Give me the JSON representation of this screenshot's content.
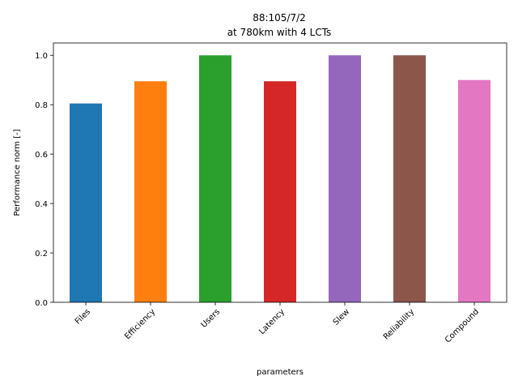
{
  "chart_data": {
    "type": "bar",
    "title": "88:105/7/2",
    "subtitle": "at 780km with 4 LCTs",
    "xlabel": "parameters",
    "ylabel": "Performance norm [-]",
    "categories": [
      "Files",
      "Efficiency",
      "Users",
      "Latency",
      "Slew",
      "Reliability",
      "Compound"
    ],
    "values": [
      0.805,
      0.895,
      1.0,
      0.895,
      1.0,
      1.0,
      0.9
    ],
    "colors": [
      "#1f77b4",
      "#ff7f0e",
      "#2ca02c",
      "#d62728",
      "#9467bd",
      "#8c564b",
      "#e377c2"
    ],
    "ylim": [
      0,
      1.05
    ],
    "yticks": [
      0.0,
      0.2,
      0.4,
      0.6,
      0.8,
      1.0
    ],
    "ytick_labels": [
      "0.0",
      "0.2",
      "0.4",
      "0.6",
      "0.8",
      "1.0"
    ],
    "grid": false,
    "legend": false
  }
}
